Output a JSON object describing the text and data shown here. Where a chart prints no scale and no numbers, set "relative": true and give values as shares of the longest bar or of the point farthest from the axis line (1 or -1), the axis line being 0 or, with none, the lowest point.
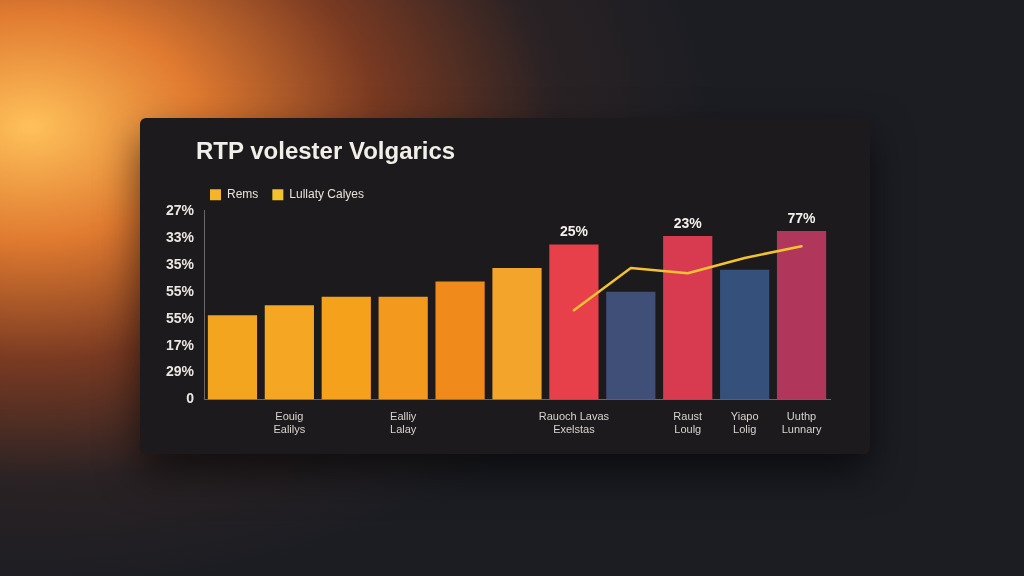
{
  "chart_data": {
    "type": "bar",
    "title": "RTP volester Volgarics",
    "categories": [
      null,
      "Eouig\nEalilys",
      null,
      "Ealliy\nLalay",
      null,
      null,
      "Rauoch Lavas\nExelstas",
      null,
      "Raust\nLoulg",
      "Yiapo\nLolig",
      "Uuthp\nLunnary"
    ],
    "relative": true,
    "series": [
      {
        "name": "Rems",
        "color": "#f5b52a",
        "colors": [
          "#f3a51f",
          "#f5a623",
          "#f6a11c",
          "#f39a1e",
          "#f08a1a",
          "#f2a52a",
          "#e8404a",
          "#3f4f78",
          "#d83a50",
          "#35507a",
          "#b0365c"
        ],
        "values": [
          0.5,
          0.56,
          0.61,
          0.61,
          0.7,
          0.78,
          0.92,
          0.64,
          0.97,
          0.77,
          1
        ]
      },
      {
        "name": "Lullaty Calyes",
        "type": "line",
        "color": "#f2c230",
        "values": [
          null,
          null,
          null,
          null,
          null,
          null,
          0.53,
          0.78,
          0.75,
          0.84,
          0.91
        ]
      }
    ],
    "annotations": [
      "27%",
      "33%",
      "35%",
      "55%",
      "55%",
      "17%",
      "29%",
      "0",
      {
        "text": "25%",
        "x": "Rauoch Lavas\nExelstas",
        "y": 0.92
      },
      {
        "text": "23%",
        "x": "Raust\nLoulg",
        "y": 0.97
      },
      {
        "text": "77%",
        "x": "Uuthp\nLunnary",
        "y": 1
      }
    ],
    "legend": "top left",
    "marker": "none"
  }
}
